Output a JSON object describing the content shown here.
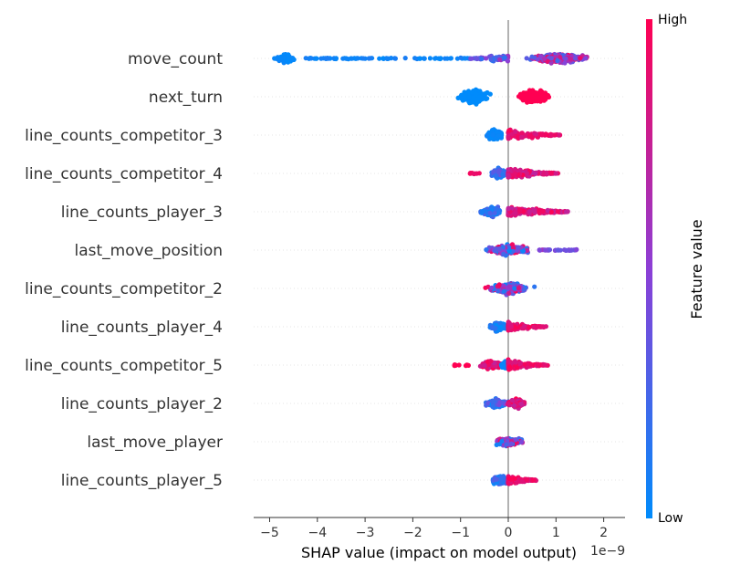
{
  "chart_data": {
    "type": "scatter",
    "subtype": "shap-beeswarm",
    "title": "",
    "xlabel": "SHAP value (impact on model output)",
    "x_offset_label": "1e−9",
    "ylabel": "",
    "xlim": [
      -5.5,
      2.45
    ],
    "xticks": [
      -5,
      -4,
      -3,
      -2,
      -1,
      0,
      1,
      2
    ],
    "xtick_labels": [
      "−5",
      "−4",
      "−3",
      "−2",
      "−1",
      "0",
      "1",
      "2"
    ],
    "grid": "dotted horizontal per feature",
    "colorbar": {
      "label": "Feature value",
      "high_label": "High",
      "low_label": "Low",
      "low_color": "#008bfb",
      "mid_color": "#8c3fd6",
      "high_color": "#ff0052"
    },
    "features": [
      {
        "name": "move_count",
        "spread": 8,
        "clusters": [
          {
            "from": -5.05,
            "to": -4.3,
            "n": 90,
            "v": [
              0.0,
              0.05
            ],
            "density": "peak"
          },
          {
            "from": -4.3,
            "to": -0.8,
            "n": 75,
            "v": [
              0.0,
              0.1
            ],
            "density": "sparse"
          },
          {
            "from": -0.8,
            "to": 0.0,
            "n": 55,
            "v": [
              0.1,
              0.6
            ],
            "density": "ramp"
          },
          {
            "from": 0.0,
            "to": 2.1,
            "n": 420,
            "v": [
              0.2,
              1.0
            ],
            "density": "peak"
          }
        ]
      },
      {
        "name": "next_turn",
        "spread": 12,
        "clusters": [
          {
            "from": -1.3,
            "to": -0.1,
            "n": 210,
            "v": [
              0.0,
              0.0
            ],
            "density": "peak"
          },
          {
            "from": 0.0,
            "to": 1.1,
            "n": 230,
            "v": [
              1.0,
              1.0
            ],
            "density": "peak"
          }
        ]
      },
      {
        "name": "line_counts_competitor_3",
        "spread": 9,
        "clusters": [
          {
            "from": -0.6,
            "to": 0.05,
            "n": 200,
            "v": [
              0.0,
              0.05
            ],
            "density": "peak"
          },
          {
            "from": 0.0,
            "to": 1.1,
            "n": 150,
            "v": [
              0.8,
              1.0
            ],
            "density": "decay"
          }
        ]
      },
      {
        "name": "line_counts_competitor_4",
        "spread": 9,
        "clusters": [
          {
            "from": -0.8,
            "to": -0.6,
            "n": 8,
            "v": [
              0.9,
              1.0
            ],
            "density": "sparse"
          },
          {
            "from": -0.5,
            "to": 0.1,
            "n": 180,
            "v": [
              0.0,
              0.4
            ],
            "density": "peak"
          },
          {
            "from": 0.0,
            "to": 1.05,
            "n": 150,
            "v": [
              0.7,
              1.0
            ],
            "density": "decay"
          }
        ]
      },
      {
        "name": "line_counts_player_3",
        "spread": 9,
        "clusters": [
          {
            "from": -0.75,
            "to": 0.05,
            "n": 170,
            "v": [
              0.0,
              0.3
            ],
            "density": "peak"
          },
          {
            "from": 0.0,
            "to": 1.25,
            "n": 160,
            "v": [
              0.7,
              1.0
            ],
            "density": "decay"
          }
        ]
      },
      {
        "name": "last_move_position",
        "spread": 9,
        "clusters": [
          {
            "from": -0.85,
            "to": 0.8,
            "n": 270,
            "v": [
              0.0,
              1.0
            ],
            "density": "peak"
          },
          {
            "from": 0.6,
            "to": 1.45,
            "n": 35,
            "v": [
              0.3,
              0.6
            ],
            "density": "sparse"
          }
        ]
      },
      {
        "name": "line_counts_competitor_2",
        "spread": 10,
        "clusters": [
          {
            "from": -0.75,
            "to": 0.8,
            "n": 300,
            "v": [
              0.0,
              1.0
            ],
            "density": "peak"
          }
        ]
      },
      {
        "name": "line_counts_player_4",
        "spread": 8,
        "clusters": [
          {
            "from": -0.55,
            "to": 0.1,
            "n": 150,
            "v": [
              0.0,
              0.2
            ],
            "density": "peak"
          },
          {
            "from": 0.0,
            "to": 0.8,
            "n": 110,
            "v": [
              0.8,
              1.0
            ],
            "density": "decay"
          }
        ]
      },
      {
        "name": "line_counts_competitor_5",
        "spread": 8,
        "clusters": [
          {
            "from": -1.15,
            "to": -0.8,
            "n": 10,
            "v": [
              1.0,
              1.0
            ],
            "density": "sparse"
          },
          {
            "from": -0.8,
            "to": 0.1,
            "n": 110,
            "v": [
              0.7,
              1.0
            ],
            "density": "peak"
          },
          {
            "from": -0.25,
            "to": 0.15,
            "n": 70,
            "v": [
              0.0,
              0.05
            ],
            "density": "peak"
          },
          {
            "from": 0.0,
            "to": 0.85,
            "n": 130,
            "v": [
              0.8,
              1.0
            ],
            "density": "decay"
          }
        ]
      },
      {
        "name": "line_counts_player_2",
        "spread": 8,
        "clusters": [
          {
            "from": -0.7,
            "to": 0.2,
            "n": 160,
            "v": [
              0.0,
              0.5
            ],
            "density": "peak"
          },
          {
            "from": -0.2,
            "to": 0.55,
            "n": 110,
            "v": [
              0.7,
              1.0
            ],
            "density": "peak"
          }
        ]
      },
      {
        "name": "last_move_player",
        "spread": 8,
        "clusters": [
          {
            "from": -0.45,
            "to": 0.5,
            "n": 220,
            "v": [
              0.0,
              1.0
            ],
            "density": "peak"
          }
        ]
      },
      {
        "name": "line_counts_player_5",
        "spread": 8,
        "clusters": [
          {
            "from": -0.45,
            "to": 0.1,
            "n": 130,
            "v": [
              0.0,
              0.3
            ],
            "density": "peak"
          },
          {
            "from": 0.0,
            "to": 0.6,
            "n": 100,
            "v": [
              0.8,
              1.0
            ],
            "density": "decay"
          }
        ]
      }
    ]
  }
}
